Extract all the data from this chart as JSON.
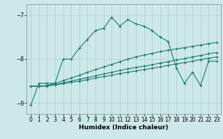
{
  "xlabel": "Humidex (Indice chaleur)",
  "bg_color": "#cce8e8",
  "grid_color": "#aacccc",
  "line_color": "#1a7a6e",
  "xlim": [
    -0.5,
    23.5
  ],
  "ylim": [
    -9.25,
    -6.75
  ],
  "yticks": [
    -9,
    -8,
    -7
  ],
  "xticks": [
    0,
    1,
    2,
    3,
    4,
    5,
    6,
    7,
    8,
    9,
    10,
    11,
    12,
    13,
    14,
    15,
    16,
    17,
    18,
    19,
    20,
    21,
    22,
    23
  ],
  "curve1_x": [
    0,
    1,
    2,
    3,
    4,
    5,
    6,
    7,
    8,
    9,
    10,
    11,
    12,
    13,
    14,
    15,
    16,
    17,
    18,
    19,
    20,
    21,
    22,
    23
  ],
  "curve1_y": [
    -9.05,
    -8.55,
    -8.55,
    -8.55,
    -8.0,
    -8.0,
    -7.75,
    -7.55,
    -7.35,
    -7.3,
    -7.05,
    -7.25,
    -7.1,
    -7.2,
    -7.25,
    -7.35,
    -7.5,
    -7.6,
    -8.2,
    -8.55,
    -8.3,
    -8.6,
    -8.05,
    -8.05
  ],
  "curve2_x": [
    0,
    1,
    2,
    3,
    4,
    5,
    6,
    7,
    8,
    9,
    10,
    11,
    12,
    13,
    14,
    15,
    16,
    17,
    18,
    19,
    20,
    21,
    22,
    23
  ],
  "curve2_y": [
    -8.62,
    -8.62,
    -8.61,
    -8.59,
    -8.56,
    -8.53,
    -8.5,
    -8.47,
    -8.43,
    -8.4,
    -8.37,
    -8.33,
    -8.3,
    -8.27,
    -8.24,
    -8.21,
    -8.18,
    -8.14,
    -8.11,
    -8.08,
    -8.05,
    -8.01,
    -7.98,
    -7.95
  ],
  "curve3_x": [
    0,
    1,
    2,
    3,
    4,
    5,
    6,
    7,
    8,
    9,
    10,
    11,
    12,
    13,
    14,
    15,
    16,
    17,
    18,
    19,
    20,
    21,
    22,
    23
  ],
  "curve3_y": [
    -8.62,
    -8.62,
    -8.61,
    -8.58,
    -8.54,
    -8.5,
    -8.46,
    -8.42,
    -8.38,
    -8.34,
    -8.3,
    -8.26,
    -8.22,
    -8.19,
    -8.16,
    -8.13,
    -8.09,
    -8.06,
    -8.02,
    -7.99,
    -7.95,
    -7.92,
    -7.88,
    -7.85
  ],
  "curve4_x": [
    0,
    1,
    2,
    3,
    4,
    5,
    6,
    7,
    8,
    9,
    10,
    11,
    12,
    13,
    14,
    15,
    16,
    17,
    18,
    19,
    20,
    21,
    22,
    23
  ],
  "curve4_y": [
    -8.62,
    -8.62,
    -8.6,
    -8.55,
    -8.49,
    -8.43,
    -8.37,
    -8.3,
    -8.24,
    -8.18,
    -8.12,
    -8.06,
    -8.0,
    -7.95,
    -7.91,
    -7.87,
    -7.83,
    -7.8,
    -7.77,
    -7.74,
    -7.71,
    -7.68,
    -7.65,
    -7.62
  ]
}
